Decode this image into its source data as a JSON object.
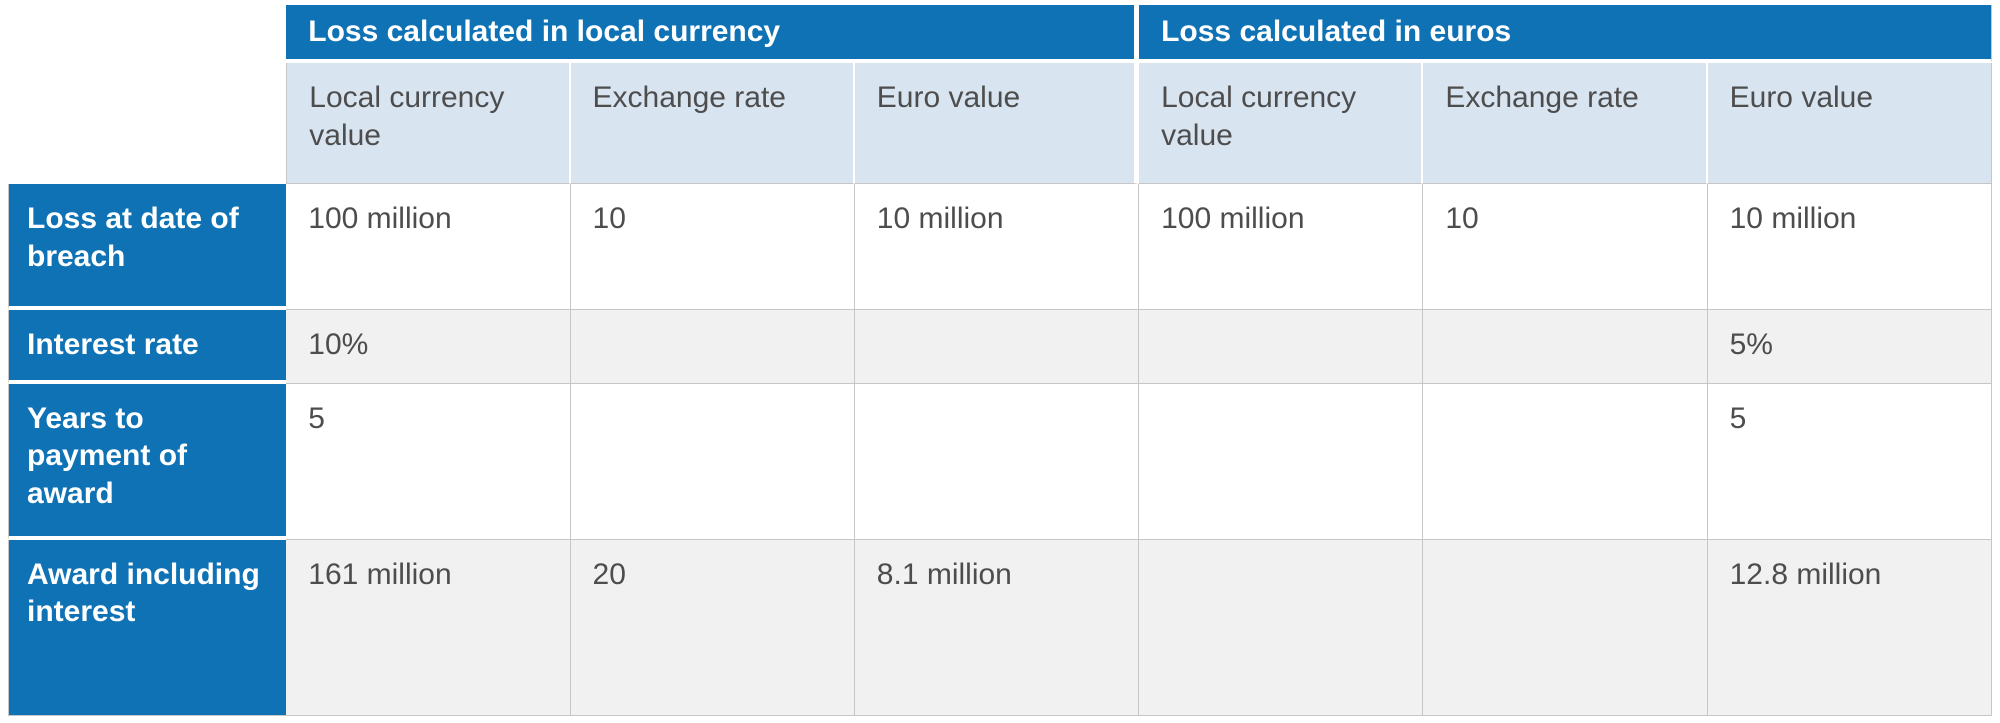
{
  "colors": {
    "header_blue": "#0e72b5",
    "subheader_blue": "#d9e4f1",
    "row_alt_gray": "#f1f1f1",
    "border_gray": "#c6c6c6",
    "text_dark": "#4d4d4d"
  },
  "table": {
    "group_headers": [
      {
        "label": "Loss calculated in local currency"
      },
      {
        "label": "Loss calculated in euros"
      }
    ],
    "column_headers": [
      "Local currency value",
      "Exchange rate",
      "Euro value",
      "Local currency value",
      "Exchange rate",
      "Euro value"
    ],
    "rows": [
      {
        "label": "Loss at date of breach",
        "cells": [
          "100 million",
          "10",
          "10 million",
          "100 million",
          "10",
          "10 million"
        ]
      },
      {
        "label": "Interest rate",
        "cells": [
          "10%",
          "",
          "",
          "",
          "",
          "5%"
        ]
      },
      {
        "label": "Years to payment of award",
        "cells": [
          "5",
          "",
          "",
          "",
          "",
          "5"
        ]
      },
      {
        "label": "Award including interest",
        "cells": [
          "161 million",
          "20",
          "8.1 million",
          "",
          "",
          "12.8 million"
        ]
      }
    ]
  }
}
